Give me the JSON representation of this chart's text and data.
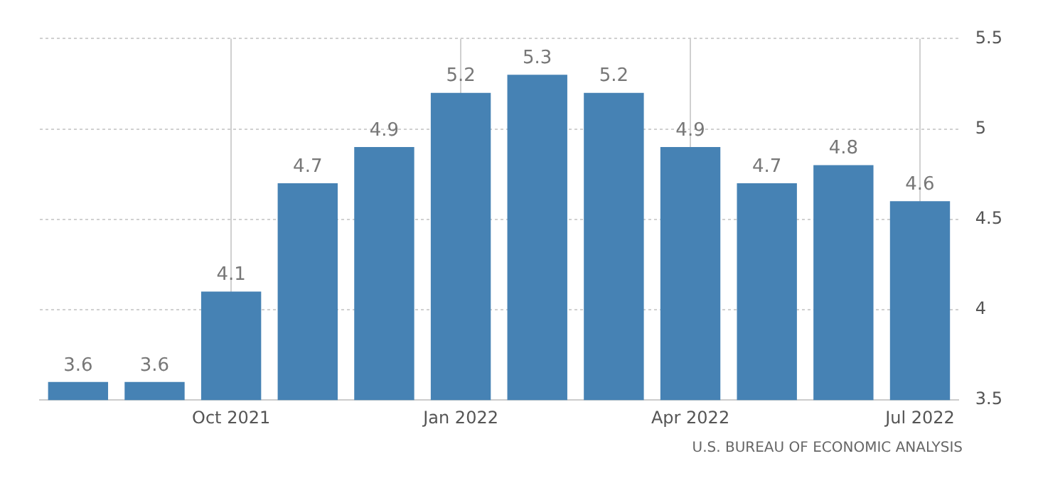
{
  "chart_data": {
    "type": "bar",
    "categories": [
      null,
      null,
      "Oct 2021",
      null,
      null,
      "Jan 2022",
      null,
      null,
      "Apr 2022",
      null,
      null,
      "Jul 2022"
    ],
    "values": [
      3.6,
      3.6,
      4.1,
      4.7,
      4.9,
      5.2,
      5.3,
      5.2,
      4.9,
      4.7,
      4.8,
      4.6
    ],
    "color": "#4682b4",
    "ylim": [
      3.5,
      5.5
    ],
    "yticks": [
      3.5,
      4,
      4.5,
      5,
      5.5
    ],
    "grid": true,
    "data_labels": true,
    "annotations": [
      "U.S. BUREAU OF ECONOMIC ANALYSIS"
    ]
  }
}
